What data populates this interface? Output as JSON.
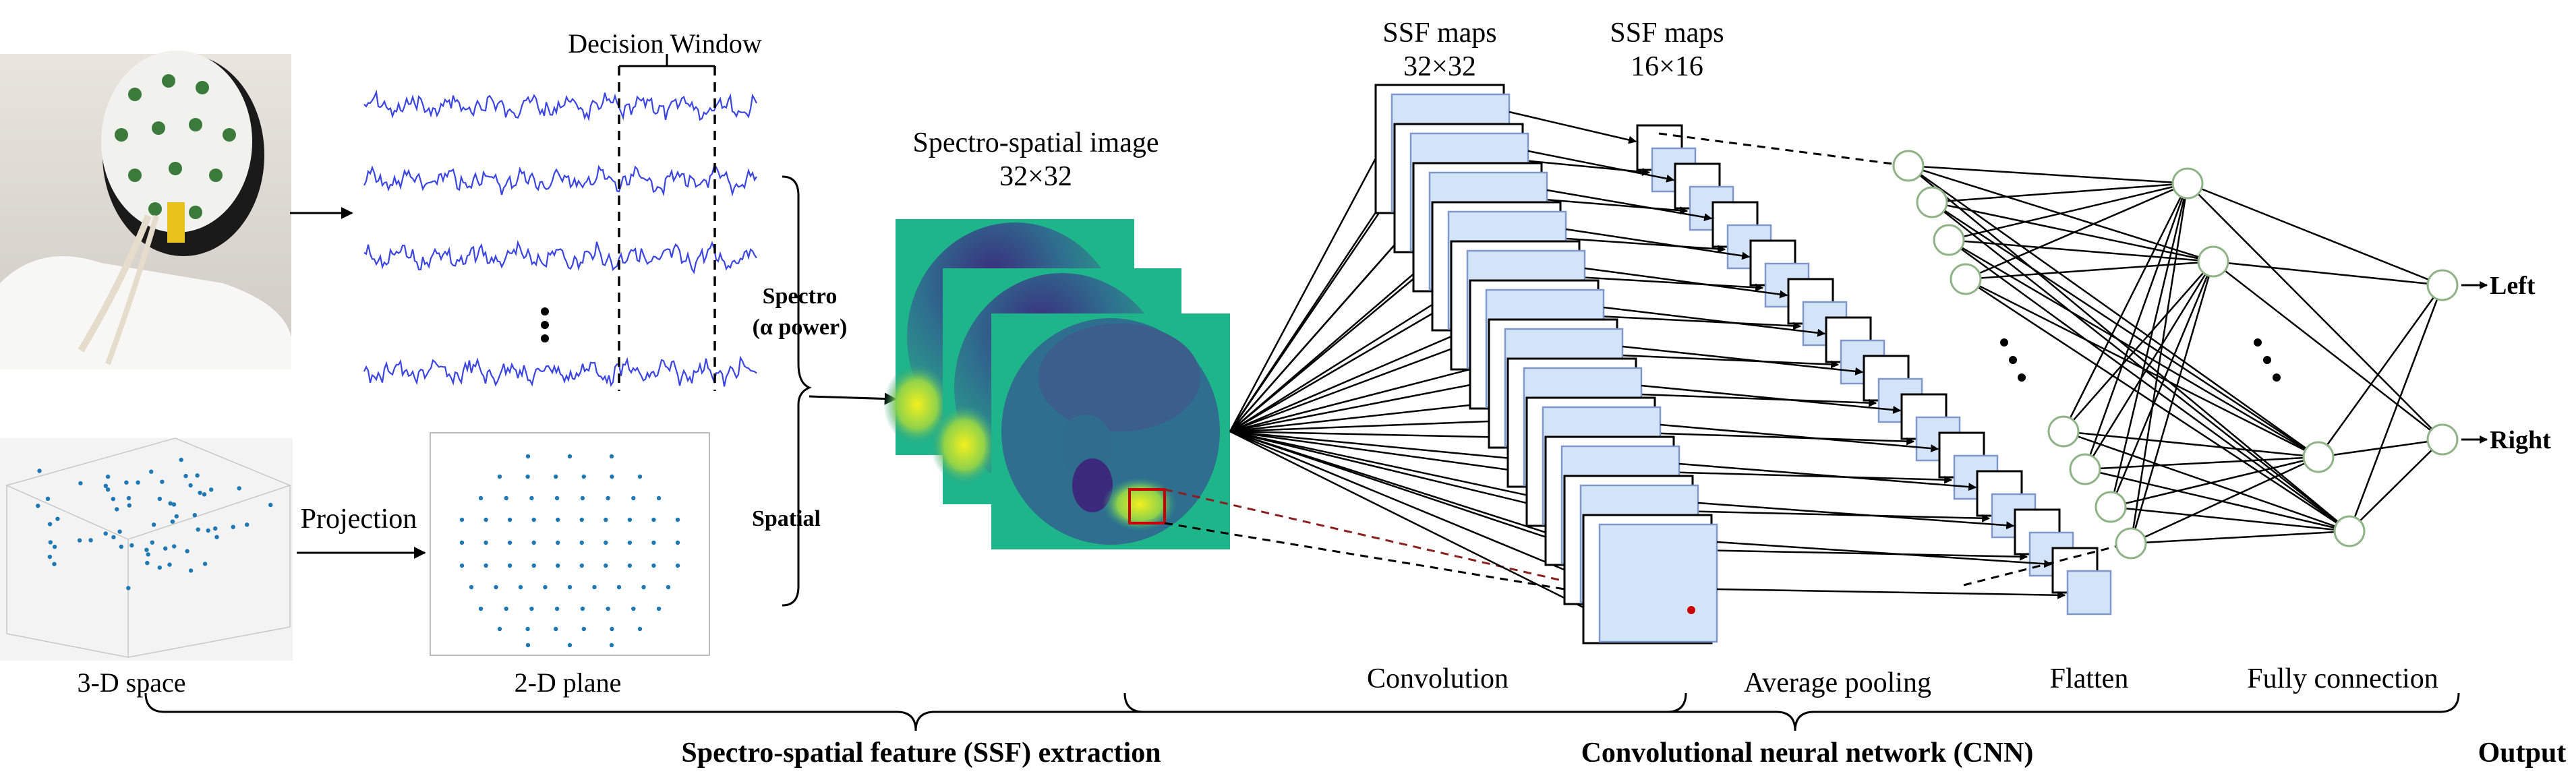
{
  "labels": {
    "decision_window": "Decision Window",
    "spectro": "Spectro",
    "alpha_power": "(α power)",
    "spatial": "Spatial",
    "projection": "Projection",
    "space_3d": "3-D  space",
    "plane_2d": "2-D  plane",
    "ss_image_title": "Spectro-spatial image",
    "ss_image_size": "32×32",
    "ssf_maps_1": "SSF maps",
    "ssf_size_1": "32×32",
    "ssf_maps_2": "SSF maps",
    "ssf_size_2": "16×16",
    "convolution": "Convolution",
    "average_pooling": "Average pooling",
    "flatten": "Flatten",
    "fully_connection": "Fully connection",
    "ssf_extraction": "Spectro-spatial feature (SSF) extraction",
    "cnn": "Convolutional neural network (CNN)",
    "output": "Output",
    "left": "Left",
    "right": "Right"
  },
  "colors": {
    "eeg_wave": "#3b46e0",
    "map_fill": "#d4e4f8",
    "map_stroke": "#7f97c9",
    "node_stroke": "#8fb386",
    "dot": "#1f77b4",
    "marker": "#cc0000",
    "heatmap_bg": "#1fb58a",
    "heatmap_dark": "#3b2a7c",
    "heatmap_mid": "#2e6e8e",
    "heatmap_hot": "#e8ee2b"
  },
  "icons": {
    "photo": "eeg-cap-head-photo",
    "scatter3d": "electrode-3d-scatter",
    "scatter2d": "electrode-2d-scatter"
  }
}
